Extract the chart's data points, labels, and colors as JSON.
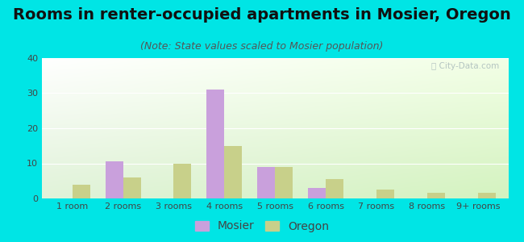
{
  "title": "Rooms in renter-occupied apartments in Mosier, Oregon",
  "subtitle": "(Note: State values scaled to Mosier population)",
  "categories": [
    "1 room",
    "2 rooms",
    "3 rooms",
    "4 rooms",
    "5 rooms",
    "6 rooms",
    "7 rooms",
    "8 rooms",
    "9+ rooms"
  ],
  "mosier_values": [
    0,
    10.5,
    0,
    31,
    9,
    3,
    0,
    0,
    0
  ],
  "oregon_values": [
    4,
    6,
    10,
    15,
    9,
    5.5,
    2.5,
    1.5,
    1.5
  ],
  "mosier_color": "#c9a0dc",
  "oregon_color": "#c8d08a",
  "background_outer": "#00e5e5",
  "ylim": [
    0,
    40
  ],
  "yticks": [
    0,
    10,
    20,
    30,
    40
  ],
  "bar_width": 0.35,
  "title_fontsize": 14,
  "subtitle_fontsize": 9,
  "tick_fontsize": 8,
  "legend_fontsize": 10,
  "watermark_text": "ⓘ City-Data.com"
}
